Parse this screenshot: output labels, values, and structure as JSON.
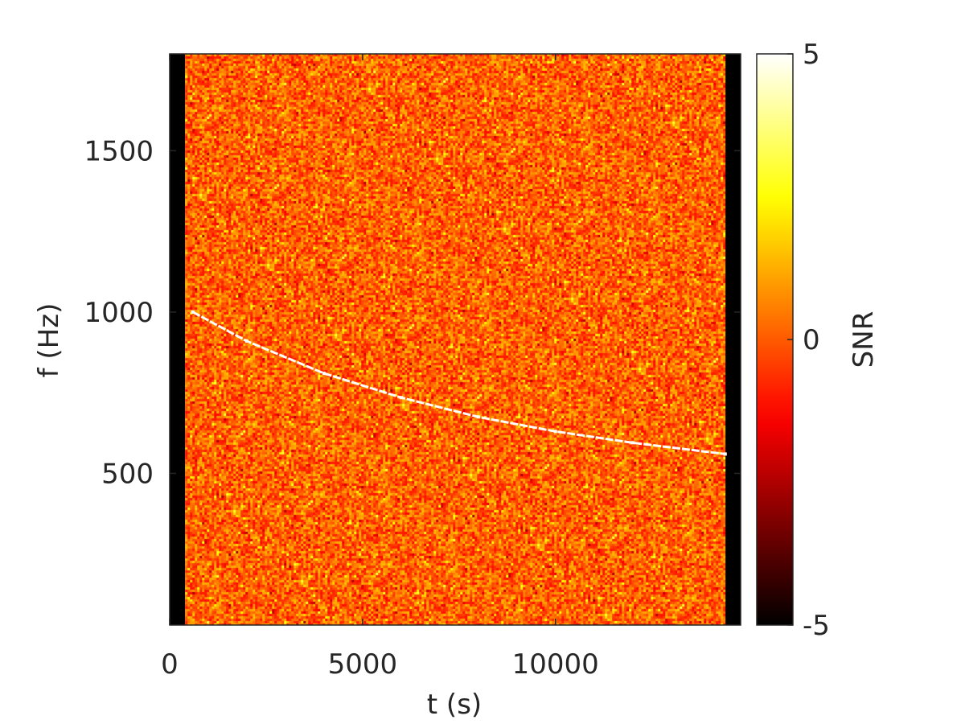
{
  "chart_data": {
    "type": "heatmap",
    "title": "",
    "xlabel": "t (s)",
    "ylabel": "f (Hz)",
    "xlim": [
      0,
      14800
    ],
    "ylim": [
      30,
      1800
    ],
    "xticks": [
      0,
      5000,
      10000
    ],
    "yticks": [
      500,
      1000,
      1500
    ],
    "xtick_labels": [
      "0",
      "5000",
      "10000"
    ],
    "ytick_labels": [
      "500",
      "1000",
      "1500"
    ],
    "data_time_range": [
      400,
      14400
    ],
    "colormap": "hot",
    "colorbar": {
      "label": "SNR",
      "range": [
        -5,
        5
      ],
      "ticks": [
        -5,
        0,
        5
      ],
      "tick_labels": [
        "-5",
        "0",
        "5"
      ]
    },
    "background_noise_snr": "approximately -1 to 3",
    "signal_track": {
      "description": "chirp decreasing in frequency",
      "t": [
        600,
        2000,
        4000,
        6000,
        8000,
        10000,
        12000,
        14400
      ],
      "f": [
        1000,
        910,
        810,
        735,
        675,
        630,
        595,
        560
      ]
    },
    "colors": {
      "hot_map": [
        "#000000",
        "#ff0000",
        "#ffff00",
        "#ffffff"
      ],
      "padding": "#000000"
    }
  }
}
